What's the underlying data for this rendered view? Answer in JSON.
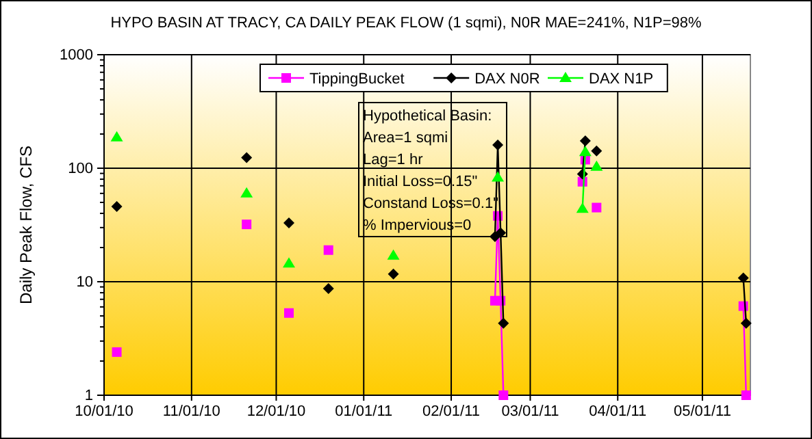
{
  "chart_data": {
    "type": "line",
    "title": "HYPO BASIN AT TRACY, CA  DAILY PEAK FLOW (1 sqmi), N0R MAE=241%, N1P=98%",
    "ylabel": "Daily Peak Flow, CFS",
    "x": [
      "2010-10-05",
      "2010-10-06",
      "2010-11-20",
      "2010-11-21",
      "2010-12-05",
      "2010-12-06",
      "2010-12-19",
      "2010-12-20",
      "2011-01-11",
      "2011-01-12",
      "2011-02-16",
      "2011-02-17",
      "2011-02-18",
      "2011-02-19",
      "2011-02-20",
      "2011-03-19",
      "2011-03-20",
      "2011-03-21",
      "2011-03-24",
      "2011-03-25",
      "2011-05-15",
      "2011-05-16"
    ],
    "series": [
      {
        "name": "TippingBucket",
        "color": "#ff00ff",
        "marker": "square",
        "values": [
          2.4,
          null,
          32,
          null,
          5.3,
          null,
          19,
          null,
          null,
          null,
          6.8,
          38,
          6.8,
          1,
          null,
          76,
          119,
          null,
          45,
          null,
          6.1,
          1
        ]
      },
      {
        "name": "DAX N0R",
        "color": "#000000",
        "marker": "diamond",
        "values": [
          46,
          null,
          124,
          null,
          33,
          null,
          8.7,
          null,
          11.7,
          null,
          25,
          160,
          27,
          4.3,
          null,
          89,
          174,
          null,
          142,
          null,
          10.8,
          4.3
        ]
      },
      {
        "name": "DAX N1P",
        "color": "#00ff00",
        "marker": "triangle",
        "values": [
          187,
          null,
          60,
          null,
          14.5,
          null,
          null,
          null,
          17,
          null,
          null,
          83,
          null,
          null,
          null,
          44,
          139,
          null,
          103,
          null,
          null,
          null
        ]
      }
    ],
    "xlim": [
      "2010-10-01",
      "2011-05-18"
    ],
    "xticks": [
      {
        "value": "2010-10-01",
        "label": "10/01/10"
      },
      {
        "value": "2010-11-01",
        "label": "11/01/10"
      },
      {
        "value": "2010-12-01",
        "label": "12/01/10"
      },
      {
        "value": "2011-01-01",
        "label": "01/01/11"
      },
      {
        "value": "2011-02-01",
        "label": "02/01/11"
      },
      {
        "value": "2011-03-01",
        "label": "03/01/11"
      },
      {
        "value": "2011-04-01",
        "label": "04/01/11"
      },
      {
        "value": "2011-05-01",
        "label": "05/01/11"
      }
    ],
    "ylim": [
      1,
      1000
    ],
    "yticks": [
      1,
      10,
      100,
      1000
    ],
    "log": true,
    "grid": true,
    "legend": "top",
    "line_style": "solid",
    "annotations": [
      "Hypothetical Basin:",
      "Area=1 sqmi",
      "Lag=1 hr",
      "Initial Loss=0.15\"",
      "Constand Loss=0.1\"",
      "% Impervious=0"
    ]
  }
}
